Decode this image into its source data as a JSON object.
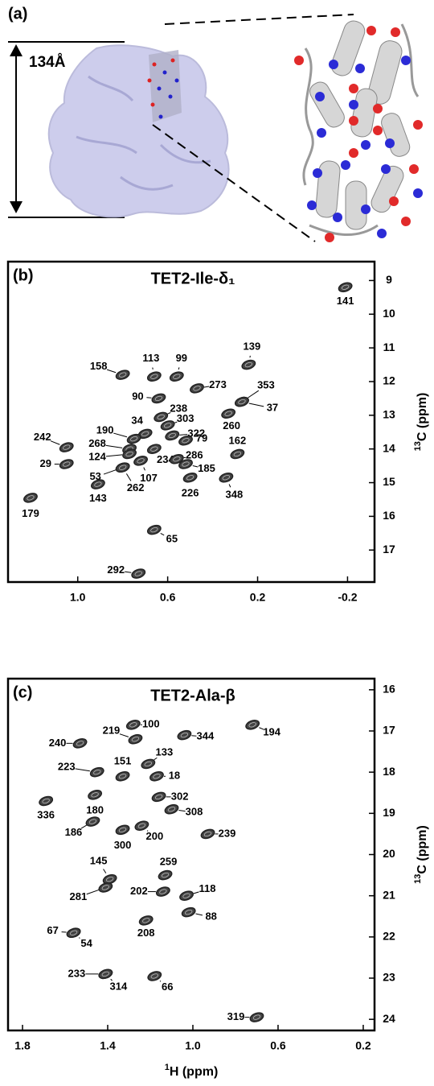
{
  "panel_a": {
    "label": "(a)",
    "dimension": "134Å"
  },
  "chart_data": [
    {
      "type": "scatter",
      "panel": "(b)",
      "title": "TET2-Ile-δ₁",
      "ylabel_sup": "13",
      "ylabel": "C (ppm)",
      "labels": [
        "141",
        "139",
        "158",
        "113",
        "99",
        "273",
        "353",
        "37",
        "90",
        "238",
        "303",
        "34",
        "190",
        "322",
        "268",
        "79",
        "260",
        "242",
        "162",
        "124",
        "234",
        "286",
        "185",
        "29",
        "107",
        "53",
        "262",
        "226",
        "348",
        "143",
        "179",
        "65",
        "292"
      ],
      "x": [
        -0.19,
        0.24,
        0.8,
        0.66,
        0.56,
        0.47,
        0.27,
        0.27,
        0.64,
        0.63,
        0.6,
        0.7,
        0.75,
        0.58,
        0.77,
        0.52,
        0.33,
        1.05,
        0.29,
        0.77,
        0.66,
        0.56,
        0.52,
        1.05,
        0.72,
        0.8,
        0.8,
        0.5,
        0.34,
        0.91,
        1.21,
        0.66,
        0.73
      ],
      "values": [
        9.2,
        11.5,
        11.8,
        11.85,
        11.85,
        12.2,
        12.6,
        12.6,
        12.5,
        13.05,
        13.3,
        13.55,
        13.7,
        13.6,
        14.0,
        13.75,
        12.95,
        13.95,
        14.15,
        14.15,
        14.0,
        14.3,
        14.45,
        14.45,
        14.35,
        14.55,
        14.55,
        14.85,
        14.85,
        15.05,
        15.45,
        16.4,
        17.7
      ],
      "xlim": [
        1.31,
        -0.32
      ],
      "xticks": [
        {
          "value": 1,
          "label": "1.0"
        },
        0.6,
        0.2,
        -0.2
      ],
      "ylim": [
        8.44,
        17.95
      ],
      "yticks": [
        9,
        10,
        11,
        12,
        13,
        14,
        15,
        16,
        17
      ],
      "color": "#222222"
    },
    {
      "type": "scatter",
      "panel": "(c)",
      "title": "TET2-Ala-β",
      "ylabel_sup": "13",
      "ylabel": "C (ppm)",
      "xlabel_sup": "1",
      "xlabel": "H (ppm)",
      "labels": [
        "100",
        "219",
        "194",
        "240",
        "344",
        "133",
        "223",
        "151",
        "18",
        "302",
        "336",
        "180",
        "308",
        "186",
        "200",
        "300",
        "239",
        "259",
        "145",
        "281",
        "202",
        "118",
        "88",
        "208",
        "67",
        "54",
        "233",
        "314",
        "66",
        "319"
      ],
      "x": [
        1.28,
        1.27,
        0.72,
        1.53,
        1.04,
        1.21,
        1.45,
        1.33,
        1.17,
        1.16,
        1.69,
        1.46,
        1.1,
        1.47,
        1.24,
        1.33,
        0.93,
        1.13,
        1.39,
        1.41,
        1.14,
        1.03,
        1.02,
        1.22,
        1.56,
        1.56,
        1.41,
        1.41,
        1.18,
        0.7
      ],
      "values": [
        16.85,
        17.2,
        16.85,
        17.3,
        17.1,
        17.8,
        18.0,
        18.1,
        18.1,
        18.6,
        18.7,
        18.55,
        18.9,
        19.2,
        19.3,
        19.4,
        19.5,
        20.5,
        20.6,
        20.8,
        20.9,
        21.0,
        21.4,
        21.6,
        21.9,
        21.9,
        22.9,
        22.9,
        22.95,
        23.95
      ],
      "xlim": [
        1.868,
        0.147
      ],
      "xticks": [
        1.8,
        1.4,
        {
          "value": 1,
          "label": "1.0"
        },
        0.6,
        0.2
      ],
      "ylim": [
        15.73,
        24.27
      ],
      "yticks": [
        16,
        17,
        18,
        19,
        20,
        21,
        22,
        23,
        24
      ],
      "color": "#222222"
    }
  ]
}
